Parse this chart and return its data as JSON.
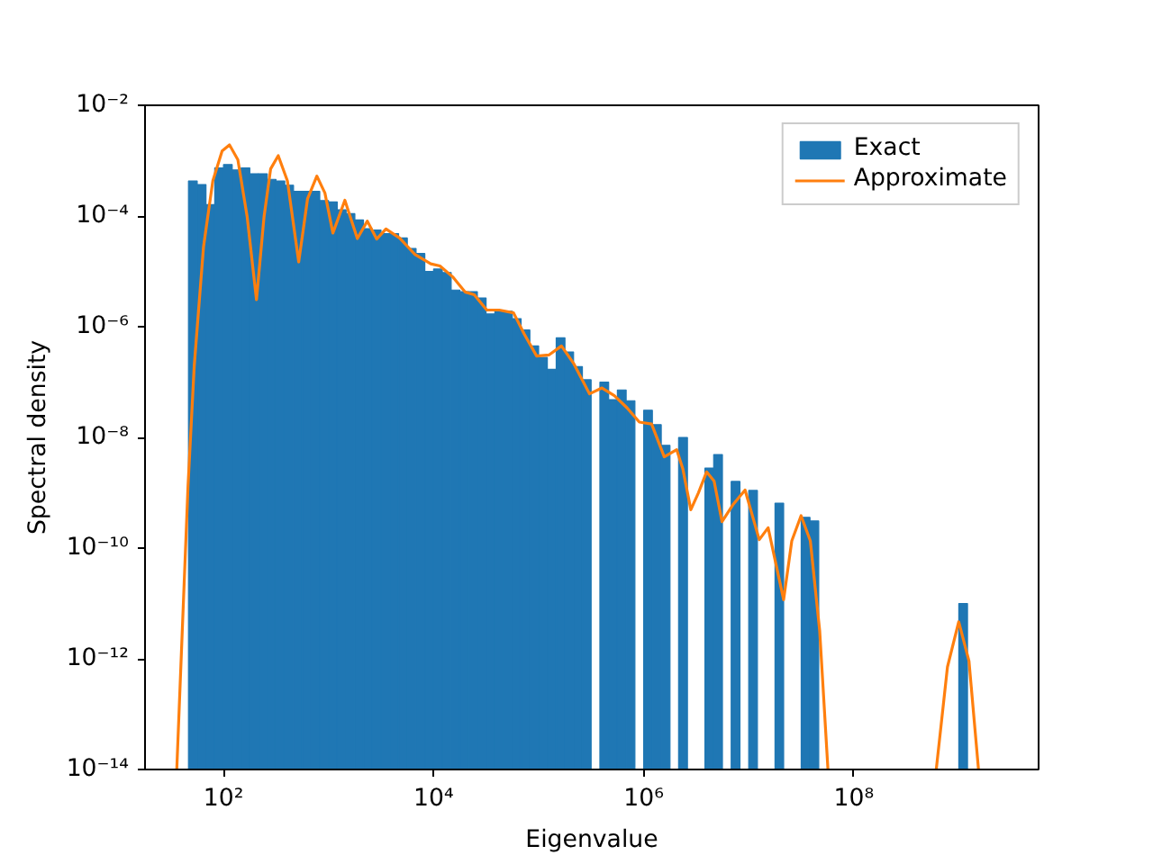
{
  "chart_data": {
    "type": "histogram",
    "xlabel": "Eigenvalue",
    "ylabel": "Spectral density",
    "log": "xy",
    "grid": false,
    "legend": "top right",
    "xlim": [
      17.9,
      5750000000.0
    ],
    "ylim": [
      1e-14,
      0.01
    ],
    "xticks": [
      {
        "value": 100,
        "label": "10²"
      },
      {
        "value": 10000,
        "label": "10⁴"
      },
      {
        "value": 1000000,
        "label": "10⁶"
      },
      {
        "value": 100000000,
        "label": "10⁸"
      }
    ],
    "yticks": [
      {
        "value": 1e-14,
        "label": "10⁻¹⁴"
      },
      {
        "value": 1e-12,
        "label": "10⁻¹²"
      },
      {
        "value": 1e-10,
        "label": "10⁻¹⁰"
      },
      {
        "value": 1e-08,
        "label": "10⁻⁸"
      },
      {
        "value": 1e-06,
        "label": "10⁻⁶"
      },
      {
        "value": 0.0001,
        "label": "10⁻⁴"
      },
      {
        "value": 0.01,
        "label": "10⁻²"
      }
    ],
    "series": [
      {
        "name": "Exact",
        "color": "#1f77b4",
        "bins": [
          46.4,
          56.2,
          68.1,
          82.5,
          100,
          121,
          147,
          178,
          215,
          261,
          316,
          383,
          464,
          562,
          681,
          825,
          1000,
          1210,
          1470,
          1780,
          2150,
          2610,
          3160,
          3830,
          4640,
          5620,
          6810,
          8250,
          10000.0,
          12100.0,
          14700.0,
          17800.0,
          21500.0,
          26100.0,
          31600.0,
          38300.0,
          46400.0,
          56200.0,
          68100.0,
          82500.0,
          100000.0,
          121000.0,
          147000.0,
          178000.0,
          215000.0,
          261000.0,
          316000.0,
          383000.0,
          464000.0,
          562000.0,
          681000.0,
          825000.0,
          1000000.0,
          1210000.0,
          1470000.0,
          1780000.0,
          2150000.0,
          2610000.0,
          3160000.0,
          3830000.0,
          4640000.0,
          5620000.0,
          6810000.0,
          8250000.0,
          10000000.0,
          12100000.0,
          14700000.0,
          17800000.0,
          21500000.0,
          26100000.0,
          31600000.0,
          38300000.0,
          46400000.0,
          56200000.0,
          68100000.0,
          82500000.0,
          100000000.0,
          121000000.0,
          147000000.0,
          178000000.0,
          215000000.0,
          261000000.0,
          316000000.0,
          383000000.0,
          464000000.0,
          562000000.0,
          681000000.0,
          825000000.0,
          1000000000.0,
          1210000000.0
        ],
        "values": [
          0.00043,
          0.00037,
          0.00016,
          0.00074,
          0.00085,
          0.00068,
          0.00074,
          0.00058,
          0.00058,
          0.00046,
          0.00043,
          0.00036,
          0.00028,
          0.00028,
          0.00028,
          0.00019,
          0.00018,
          0.00013,
          0.00011,
          8.5e-05,
          5.9e-05,
          5.6e-05,
          4.8e-05,
          4.8e-05,
          4e-05,
          2.6e-05,
          2.1e-05,
          1e-05,
          1.1e-05,
          9.5e-06,
          4.6e-06,
          4.3e-06,
          4.3e-06,
          3.3e-06,
          1.7e-06,
          1.9e-06,
          1.9e-06,
          1.4e-06,
          8.7e-07,
          4.5e-07,
          2.8e-07,
          1.7e-07,
          6.3e-07,
          3.5e-07,
          1.9e-07,
          1.1e-07,
          null,
          1e-07,
          4.8e-08,
          7.2e-08,
          4.6e-08,
          null,
          3.1e-08,
          1.7e-08,
          7.2e-09,
          null,
          1e-08,
          null,
          null,
          2.8e-09,
          4.9e-09,
          null,
          1.6e-09,
          null,
          1.1e-09,
          null,
          null,
          6.5e-10,
          null,
          null,
          3.6e-10,
          3.1e-10,
          null,
          null,
          null,
          null,
          null,
          null,
          null,
          null,
          null,
          null,
          null,
          null,
          null,
          null,
          null,
          null,
          1e-11
        ]
      },
      {
        "name": "Approximate",
        "type": "line",
        "color": "#ff7f0e",
        "x": [
          35.9,
          45.9,
          52.6,
          64.5,
          79.1,
          97.0,
          114,
          137,
          168,
          206,
          243,
          281,
          332,
          406,
          520,
          631,
          774,
          923,
          1100,
          1430,
          1880,
          2340,
          2870,
          3520,
          4740,
          6680,
          9400,
          11500.0,
          15200.0,
          19900.0,
          24400.0,
          32100.0,
          42200.0,
          57700.0,
          72800.0,
          95800.0,
          125000.0,
          165000.0,
          217000.0,
          305000.0,
          401000.0,
          526000.0,
          692000.0,
          910000.0,
          1190000.0,
          1570000.0,
          2060000.0,
          2360000.0,
          2810000.0,
          3320000.0,
          3970000.0,
          4680000.0,
          5570000.0,
          7050000.0,
          9230000.0,
          12600000.0,
          15300000.0,
          21500000.0,
          25700000.0,
          31500000.0,
          38600000.0,
          47400000.0,
          56800000.0,
          100000000.0,
          610000000.0,
          780000000.0,
          998000000.0,
          1250000000.0,
          1540000000.0
        ],
        "values": [
          1e-14,
          1.28e-09,
          1.93e-07,
          2.76e-05,
          0.000431,
          0.0015,
          0.00193,
          0.00104,
          9.6e-05,
          3.08e-06,
          9.6e-05,
          0.00071,
          0.00123,
          0.000431,
          1.48e-05,
          0.000204,
          0.000527,
          0.000261,
          4.91e-05,
          0.000193,
          3.92e-05,
          8.1e-05,
          3.84e-05,
          5.83e-05,
          4.01e-05,
          2e-05,
          1.37e-05,
          1.25e-05,
          7.96e-06,
          4.25e-06,
          3.77e-06,
          2e-06,
          2e-06,
          1.78e-06,
          7.41e-07,
          2.95e-07,
          3.08e-07,
          4.49e-07,
          2.12e-07,
          6.12e-08,
          7.83e-08,
          5.68e-08,
          3.44e-08,
          1.89e-08,
          1.75e-08,
          4.46e-09,
          6.01e-09,
          2.7e-09,
          4.93e-10,
          9.98e-10,
          2.38e-09,
          1.63e-09,
          3.01e-10,
          6.03e-10,
          1.12e-09,
          1.42e-10,
          2.33e-10,
          1.17e-11,
          1.35e-10,
          3.85e-10,
          1.35e-10,
          3.19e-12,
          1e-14,
          null,
          1e-14,
          7.14e-13,
          4.65e-12,
          9.14e-13,
          1e-14
        ]
      }
    ]
  }
}
